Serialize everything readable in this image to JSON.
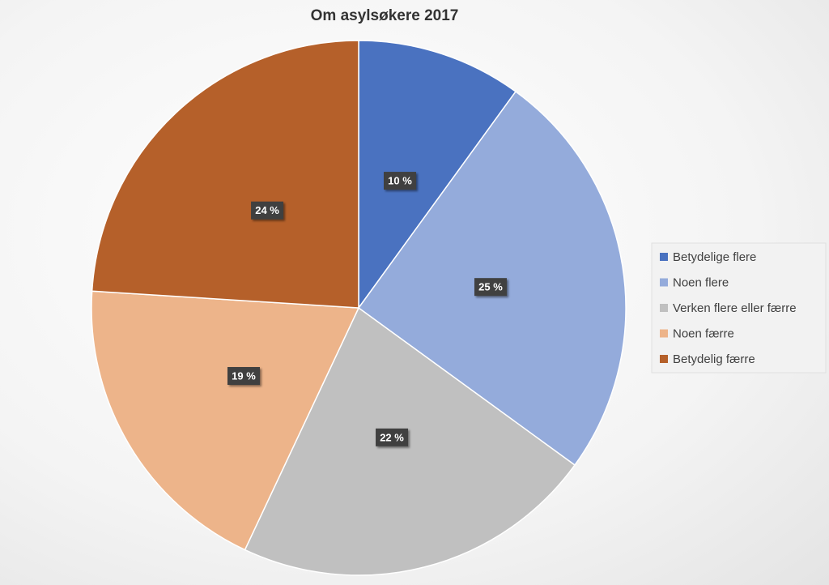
{
  "chart_data": {
    "type": "pie",
    "title": "Om asylsøkere 2017",
    "categories": [
      "Betydelige flere",
      "Noen flere",
      "Verken flere eller færre",
      "Noen færre",
      "Betydelig færre"
    ],
    "values": [
      10,
      25,
      22,
      19,
      24
    ],
    "value_labels": [
      "10 %",
      "25 %",
      "22 %",
      "19 %",
      "24 %"
    ],
    "colors": [
      "#4a72c0",
      "#94abdb",
      "#c0c0c0",
      "#edb48a",
      "#b5602a"
    ],
    "legend": "right"
  }
}
